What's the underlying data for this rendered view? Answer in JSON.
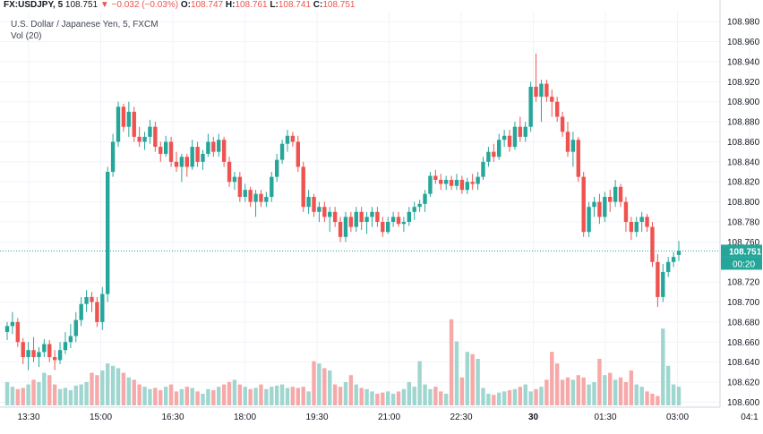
{
  "header": {
    "symbol": "FX:USDJPY, 5",
    "last": "108.751",
    "arrow": "▼",
    "change": "−0.032 (−0.03%)",
    "o_label": "O:",
    "o_val": "108.747",
    "h_label": "H:",
    "h_val": "108.761",
    "l_label": "L:",
    "l_val": "108.741",
    "c_label": "C:",
    "c_val": "108.751",
    "title": "U.S. Dollar / Japanese Yen, 5, FXCM",
    "vol_label": "Vol (20)"
  },
  "colors": {
    "up": "#26a69a",
    "down": "#ef5350",
    "vol_up": "#9fd6cf",
    "vol_down": "#f6a9a8",
    "grid": "#f0f3fa",
    "price_tag": "#26a69a"
  },
  "chart_data": {
    "type": "candlestick",
    "ylim": [
      108.595,
      108.99
    ],
    "y_ticks": [
      "108.980",
      "108.960",
      "108.940",
      "108.920",
      "108.900",
      "108.880",
      "108.860",
      "108.840",
      "108.820",
      "108.800",
      "108.780",
      "108.760",
      "108.720",
      "108.700",
      "108.680",
      "108.660",
      "108.640",
      "108.620",
      "108.600"
    ],
    "x_ticks": [
      "13:30",
      "15:00",
      "16:30",
      "18:00",
      "19:30",
      "21:00",
      "22:30",
      "30",
      "01:30",
      "03:00",
      "04:1"
    ],
    "current_price": "108.751",
    "countdown": "00:20",
    "candles": [
      [
        108.67,
        108.68,
        108.662,
        108.676
      ],
      [
        108.676,
        108.69,
        108.668,
        108.68
      ],
      [
        108.68,
        108.684,
        108.655,
        108.66
      ],
      [
        108.66,
        108.664,
        108.638,
        108.645
      ],
      [
        108.645,
        108.66,
        108.632,
        108.652
      ],
      [
        108.652,
        108.665,
        108.64,
        108.645
      ],
      [
        108.645,
        108.655,
        108.635,
        108.65
      ],
      [
        108.65,
        108.663,
        108.645,
        108.658
      ],
      [
        108.658,
        108.662,
        108.64,
        108.645
      ],
      [
        108.645,
        108.652,
        108.632,
        108.642
      ],
      [
        108.642,
        108.66,
        108.638,
        108.652
      ],
      [
        108.652,
        108.67,
        108.648,
        108.66
      ],
      [
        108.66,
        108.678,
        108.654,
        108.666
      ],
      [
        108.666,
        108.69,
        108.66,
        108.682
      ],
      [
        108.682,
        108.705,
        108.676,
        108.698
      ],
      [
        108.698,
        108.712,
        108.69,
        108.705
      ],
      [
        108.705,
        108.71,
        108.69,
        108.7
      ],
      [
        108.7,
        108.705,
        108.675,
        108.68
      ],
      [
        108.68,
        108.715,
        108.672,
        108.708
      ],
      [
        108.708,
        108.835,
        108.7,
        108.83
      ],
      [
        108.83,
        108.868,
        108.825,
        108.86
      ],
      [
        108.86,
        108.9,
        108.855,
        108.895
      ],
      [
        108.895,
        108.898,
        108.87,
        108.875
      ],
      [
        108.875,
        108.9,
        108.865,
        108.89
      ],
      [
        108.89,
        108.895,
        108.86,
        108.865
      ],
      [
        108.865,
        108.875,
        108.855,
        108.86
      ],
      [
        108.86,
        108.87,
        108.852,
        108.865
      ],
      [
        108.865,
        108.882,
        108.858,
        108.875
      ],
      [
        108.875,
        108.88,
        108.85,
        108.855
      ],
      [
        108.855,
        108.86,
        108.84,
        108.848
      ],
      [
        108.848,
        108.866,
        108.845,
        108.86
      ],
      [
        108.86,
        108.865,
        108.835,
        108.84
      ],
      [
        108.84,
        108.85,
        108.83,
        108.835
      ],
      [
        108.835,
        108.848,
        108.82,
        108.845
      ],
      [
        108.845,
        108.848,
        108.825,
        108.835
      ],
      [
        108.835,
        108.862,
        108.832,
        108.855
      ],
      [
        108.855,
        108.86,
        108.835,
        108.84
      ],
      [
        108.84,
        108.852,
        108.832,
        108.848
      ],
      [
        108.848,
        108.868,
        108.845,
        108.86
      ],
      [
        108.86,
        108.865,
        108.845,
        108.85
      ],
      [
        108.85,
        108.868,
        108.845,
        108.862
      ],
      [
        108.862,
        108.865,
        108.835,
        108.84
      ],
      [
        108.84,
        108.845,
        108.815,
        108.82
      ],
      [
        108.82,
        108.83,
        108.812,
        108.825
      ],
      [
        108.825,
        108.83,
        108.8,
        108.805
      ],
      [
        108.805,
        108.818,
        108.8,
        108.812
      ],
      [
        108.812,
        108.815,
        108.795,
        108.8
      ],
      [
        108.8,
        108.812,
        108.785,
        108.808
      ],
      [
        108.808,
        108.812,
        108.795,
        108.8
      ],
      [
        108.8,
        108.81,
        108.795,
        108.805
      ],
      [
        108.805,
        108.83,
        108.8,
        108.825
      ],
      [
        108.825,
        108.848,
        108.82,
        108.842
      ],
      [
        108.842,
        108.862,
        108.838,
        108.858
      ],
      [
        108.858,
        108.872,
        108.85,
        108.866
      ],
      [
        108.866,
        108.87,
        108.855,
        108.86
      ],
      [
        108.86,
        108.866,
        108.83,
        108.835
      ],
      [
        108.835,
        108.84,
        108.79,
        108.795
      ],
      [
        108.795,
        108.812,
        108.788,
        108.805
      ],
      [
        108.805,
        108.808,
        108.785,
        108.79
      ],
      [
        108.79,
        108.8,
        108.78,
        108.795
      ],
      [
        108.795,
        108.8,
        108.78,
        108.785
      ],
      [
        108.785,
        108.795,
        108.77,
        108.79
      ],
      [
        108.79,
        108.795,
        108.775,
        108.78
      ],
      [
        108.78,
        108.785,
        108.76,
        108.765
      ],
      [
        108.765,
        108.79,
        108.76,
        108.785
      ],
      [
        108.785,
        108.79,
        108.77,
        108.775
      ],
      [
        108.775,
        108.795,
        108.77,
        108.79
      ],
      [
        108.79,
        108.795,
        108.772,
        108.78
      ],
      [
        108.78,
        108.79,
        108.768,
        108.785
      ],
      [
        108.785,
        108.795,
        108.775,
        108.79
      ],
      [
        108.79,
        108.795,
        108.775,
        108.78
      ],
      [
        108.78,
        108.785,
        108.765,
        108.77
      ],
      [
        108.77,
        108.785,
        108.768,
        108.78
      ],
      [
        108.78,
        108.79,
        108.775,
        108.785
      ],
      [
        108.785,
        108.79,
        108.775,
        108.778
      ],
      [
        108.778,
        108.785,
        108.77,
        108.78
      ],
      [
        108.78,
        108.795,
        108.776,
        108.79
      ],
      [
        108.79,
        108.8,
        108.782,
        108.795
      ],
      [
        108.795,
        108.802,
        108.79,
        108.798
      ],
      [
        108.798,
        108.812,
        108.79,
        108.808
      ],
      [
        108.808,
        108.83,
        108.805,
        108.826
      ],
      [
        108.826,
        108.832,
        108.818,
        108.822
      ],
      [
        108.822,
        108.828,
        108.812,
        108.818
      ],
      [
        108.818,
        108.826,
        108.812,
        108.822
      ],
      [
        108.822,
        108.826,
        108.812,
        108.816
      ],
      [
        108.816,
        108.828,
        108.812,
        108.822
      ],
      [
        108.822,
        108.826,
        108.808,
        108.812
      ],
      [
        108.812,
        108.824,
        108.808,
        108.82
      ],
      [
        108.82,
        108.828,
        108.812,
        108.818
      ],
      [
        108.818,
        108.83,
        108.812,
        108.825
      ],
      [
        108.825,
        108.845,
        108.822,
        108.84
      ],
      [
        108.84,
        108.855,
        108.835,
        108.85
      ],
      [
        108.85,
        108.858,
        108.84,
        108.845
      ],
      [
        108.845,
        108.868,
        108.842,
        108.862
      ],
      [
        108.862,
        108.872,
        108.855,
        108.866
      ],
      [
        108.866,
        108.872,
        108.85,
        108.855
      ],
      [
        108.855,
        108.88,
        108.852,
        108.875
      ],
      [
        108.875,
        108.885,
        108.86,
        108.865
      ],
      [
        108.865,
        108.88,
        108.86,
        108.875
      ],
      [
        108.875,
        108.92,
        108.87,
        108.915
      ],
      [
        108.915,
        108.948,
        108.9,
        108.905
      ],
      [
        108.905,
        108.922,
        108.88,
        108.918
      ],
      [
        108.918,
        108.922,
        108.9,
        108.905
      ],
      [
        108.905,
        108.912,
        108.885,
        108.9
      ],
      [
        108.9,
        108.905,
        108.88,
        108.885
      ],
      [
        108.885,
        108.89,
        108.865,
        108.87
      ],
      [
        108.87,
        108.88,
        108.845,
        108.85
      ],
      [
        108.85,
        108.87,
        108.835,
        108.862
      ],
      [
        108.862,
        108.865,
        108.82,
        108.825
      ],
      [
        108.825,
        108.83,
        108.765,
        108.77
      ],
      [
        108.77,
        108.8,
        108.765,
        108.795
      ],
      [
        108.795,
        108.805,
        108.785,
        108.8
      ],
      [
        108.8,
        108.808,
        108.778,
        108.785
      ],
      [
        108.785,
        108.81,
        108.78,
        108.805
      ],
      [
        108.805,
        108.812,
        108.79,
        108.8
      ],
      [
        108.8,
        108.822,
        108.795,
        108.815
      ],
      [
        108.815,
        108.818,
        108.795,
        108.8
      ],
      [
        108.8,
        108.805,
        108.77,
        108.78
      ],
      [
        108.78,
        108.785,
        108.762,
        108.77
      ],
      [
        108.77,
        108.785,
        108.765,
        108.78
      ],
      [
        108.78,
        108.79,
        108.77,
        108.785
      ],
      [
        108.785,
        108.788,
        108.77,
        108.775
      ],
      [
        108.775,
        108.78,
        108.735,
        108.74
      ],
      [
        108.74,
        108.748,
        108.695,
        108.705
      ],
      [
        108.705,
        108.738,
        108.7,
        108.73
      ],
      [
        108.73,
        108.745,
        108.725,
        108.74
      ],
      [
        108.74,
        108.75,
        108.735,
        108.745
      ],
      [
        108.747,
        108.761,
        108.741,
        108.751
      ]
    ],
    "volumes": [
      0.2,
      0.16,
      0.14,
      0.15,
      0.18,
      0.22,
      0.2,
      0.28,
      0.26,
      0.18,
      0.14,
      0.15,
      0.13,
      0.17,
      0.18,
      0.2,
      0.28,
      0.26,
      0.3,
      0.36,
      0.34,
      0.32,
      0.28,
      0.24,
      0.22,
      0.18,
      0.16,
      0.14,
      0.15,
      0.13,
      0.16,
      0.18,
      0.12,
      0.14,
      0.16,
      0.15,
      0.12,
      0.1,
      0.14,
      0.13,
      0.16,
      0.18,
      0.2,
      0.22,
      0.18,
      0.16,
      0.14,
      0.15,
      0.18,
      0.14,
      0.16,
      0.17,
      0.18,
      0.15,
      0.16,
      0.15,
      0.16,
      0.12,
      0.38,
      0.36,
      0.32,
      0.3,
      0.18,
      0.16,
      0.2,
      0.26,
      0.18,
      0.15,
      0.14,
      0.12,
      0.1,
      0.11,
      0.12,
      0.1,
      0.12,
      0.14,
      0.2,
      0.16,
      0.38,
      0.18,
      0.14,
      0.16,
      0.12,
      0.1,
      0.74,
      0.55,
      0.24,
      0.46,
      0.44,
      0.4,
      0.15,
      0.1,
      0.09,
      0.11,
      0.12,
      0.13,
      0.14,
      0.16,
      0.18,
      0.12,
      0.14,
      0.16,
      0.22,
      0.46,
      0.36,
      0.22,
      0.24,
      0.22,
      0.26,
      0.24,
      0.18,
      0.2,
      0.4,
      0.26,
      0.28,
      0.22,
      0.24,
      0.2,
      0.3,
      0.18,
      0.16,
      0.12,
      0.1,
      0.08,
      0.66,
      0.34,
      0.18,
      0.16
    ]
  }
}
